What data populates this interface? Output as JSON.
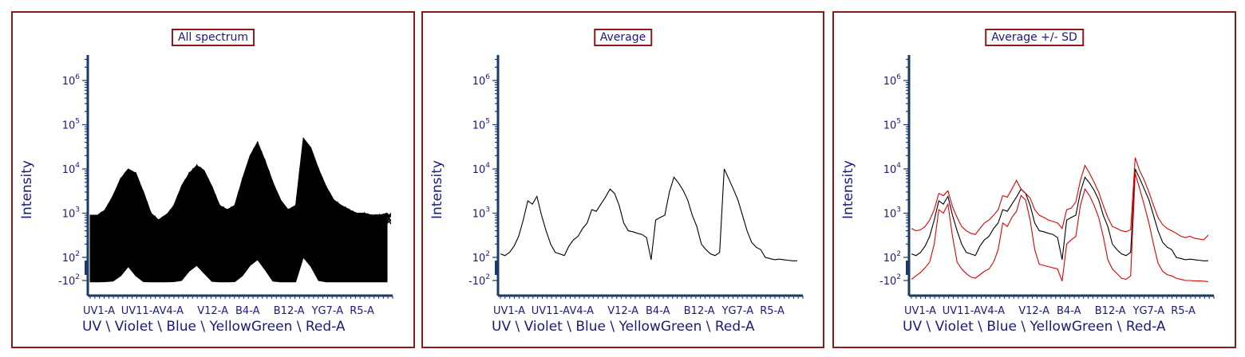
{
  "chart_data": [
    {
      "type": "line",
      "title": "All spectrum",
      "ylabel": "Intensity",
      "xlabel": "UV \\ Violet \\ Blue \\ YellowGreen \\ Red-A",
      "yscale": "biexponential",
      "x_tick_labels": [
        "UV1-A",
        "UV11-A",
        "V4-A",
        "V12-A",
        "B4-A",
        "B12-A",
        "YG7-A",
        "R5-A"
      ],
      "y_tick_labels": [
        {
          "value": 1000000,
          "base": "10",
          "exp": "6"
        },
        {
          "value": 100000,
          "base": "10",
          "exp": "5"
        },
        {
          "value": 10000,
          "base": "10",
          "exp": "4"
        },
        {
          "value": 1000,
          "base": "10",
          "exp": "3"
        },
        {
          "value": 100,
          "base": "10",
          "exp": "2"
        },
        {
          "value": -100,
          "base": "-10",
          "exp": "2"
        }
      ],
      "series": [
        {
          "role": "individual-spectra-envelope-upper",
          "color": "#000000",
          "values": [
            900,
            900,
            1200,
            2500,
            6000,
            10000,
            8000,
            3000,
            1000,
            700,
            900,
            1500,
            4000,
            8000,
            12000,
            9000,
            4000,
            1500,
            1200,
            1500,
            6000,
            20000,
            40000,
            15000,
            5000,
            2000,
            1200,
            1500,
            50000,
            30000,
            10000,
            4000,
            2000,
            1500,
            1200,
            1000,
            1000,
            900,
            900,
            1000
          ]
        },
        {
          "role": "individual-spectra-envelope-lower",
          "color": "#000000",
          "values": [
            -150,
            -150,
            -140,
            -120,
            -60,
            20,
            -60,
            -140,
            -150,
            -150,
            -150,
            -140,
            -100,
            -20,
            30,
            -40,
            -130,
            -150,
            -150,
            -140,
            -60,
            30,
            80,
            -10,
            -120,
            -150,
            -150,
            -150,
            100,
            20,
            -100,
            -150,
            -150,
            -150,
            -150,
            -150,
            -150,
            -150,
            -150,
            -150
          ]
        }
      ]
    },
    {
      "type": "line",
      "title": "Average",
      "ylabel": "Intensity",
      "xlabel": "UV \\ Violet \\ Blue \\ YellowGreen \\ Red-A",
      "yscale": "biexponential",
      "x_tick_labels": [
        "UV1-A",
        "UV11-A",
        "V4-A",
        "V12-A",
        "B4-A",
        "B12-A",
        "YG7-A",
        "R5-A"
      ],
      "y_tick_labels": [
        {
          "value": 1000000,
          "base": "10",
          "exp": "6"
        },
        {
          "value": 100000,
          "base": "10",
          "exp": "5"
        },
        {
          "value": 10000,
          "base": "10",
          "exp": "4"
        },
        {
          "value": 1000,
          "base": "10",
          "exp": "3"
        },
        {
          "value": 100,
          "base": "10",
          "exp": "2"
        },
        {
          "value": -100,
          "base": "-10",
          "exp": "2"
        }
      ],
      "series": [
        {
          "name": "",
          "color": "#000000",
          "values": [
            120,
            110,
            130,
            180,
            300,
            700,
            1900,
            1600,
            2400,
            900,
            400,
            200,
            130,
            120,
            110,
            180,
            250,
            300,
            450,
            600,
            1200,
            1100,
            1600,
            2300,
            3500,
            2800,
            1500,
            600,
            400,
            380,
            350,
            330,
            280,
            80,
            700,
            800,
            900,
            3000,
            6500,
            4800,
            3300,
            2000,
            900,
            500,
            200,
            150,
            120,
            110,
            130,
            10000,
            6000,
            3500,
            2000,
            900,
            400,
            220,
            170,
            150,
            100,
            90,
            80,
            85,
            80,
            75,
            70,
            70
          ]
        }
      ]
    },
    {
      "type": "line",
      "title": "Average +/- SD",
      "ylabel": "Intensity",
      "xlabel": "UV \\ Violet \\ Blue \\ YellowGreen \\ Red-A",
      "yscale": "biexponential",
      "x_tick_labels": [
        "UV1-A",
        "UV11-A",
        "V4-A",
        "V12-A",
        "B4-A",
        "B12-A",
        "YG7-A",
        "R5-A"
      ],
      "y_tick_labels": [
        {
          "value": 1000000,
          "base": "10",
          "exp": "6"
        },
        {
          "value": 100000,
          "base": "10",
          "exp": "5"
        },
        {
          "value": 10000,
          "base": "10",
          "exp": "4"
        },
        {
          "value": 1000,
          "base": "10",
          "exp": "3"
        },
        {
          "value": 100,
          "base": "10",
          "exp": "2"
        },
        {
          "value": -100,
          "base": "-10",
          "exp": "2"
        }
      ],
      "series": [
        {
          "role": "average",
          "color": "#000000",
          "values": [
            120,
            110,
            130,
            180,
            300,
            700,
            1900,
            1600,
            2400,
            900,
            400,
            200,
            130,
            120,
            110,
            180,
            250,
            300,
            450,
            600,
            1200,
            1100,
            1600,
            2300,
            3500,
            2800,
            1500,
            600,
            400,
            380,
            350,
            330,
            280,
            80,
            700,
            800,
            900,
            3000,
            6500,
            4800,
            3300,
            2000,
            900,
            500,
            200,
            150,
            120,
            110,
            130,
            10000,
            6000,
            3500,
            2000,
            900,
            400,
            220,
            170,
            150,
            100,
            90,
            80,
            85,
            80,
            75,
            70,
            70
          ]
        },
        {
          "role": "average-plus-sd",
          "color": "#e00000",
          "values": [
            450,
            400,
            420,
            500,
            700,
            1200,
            2800,
            2500,
            3200,
            1400,
            800,
            500,
            400,
            350,
            330,
            450,
            600,
            700,
            900,
            1200,
            2500,
            2300,
            3500,
            5500,
            3500,
            2800,
            2200,
            1200,
            900,
            800,
            700,
            650,
            600,
            450,
            1200,
            1300,
            1800,
            5500,
            12000,
            8000,
            5000,
            3000,
            1500,
            800,
            500,
            450,
            400,
            380,
            420,
            18000,
            9000,
            5500,
            3000,
            1500,
            800,
            550,
            450,
            400,
            350,
            300,
            280,
            300,
            270,
            260,
            250,
            320
          ]
        },
        {
          "role": "average-minus-sd",
          "color": "#e00000",
          "values": [
            -90,
            -60,
            -30,
            10,
            60,
            200,
            1200,
            1000,
            1600,
            300,
            60,
            0,
            -40,
            -70,
            -80,
            -50,
            -20,
            0,
            60,
            150,
            600,
            500,
            800,
            1100,
            2500,
            2000,
            700,
            150,
            40,
            30,
            20,
            10,
            0,
            -120,
            200,
            250,
            300,
            1500,
            3500,
            2500,
            1500,
            800,
            300,
            80,
            0,
            -40,
            -80,
            -90,
            -60,
            8000,
            3500,
            1500,
            600,
            200,
            50,
            -20,
            -50,
            -60,
            -80,
            -90,
            -100,
            -100,
            -110,
            -115,
            -120,
            -140
          ]
        }
      ]
    }
  ]
}
